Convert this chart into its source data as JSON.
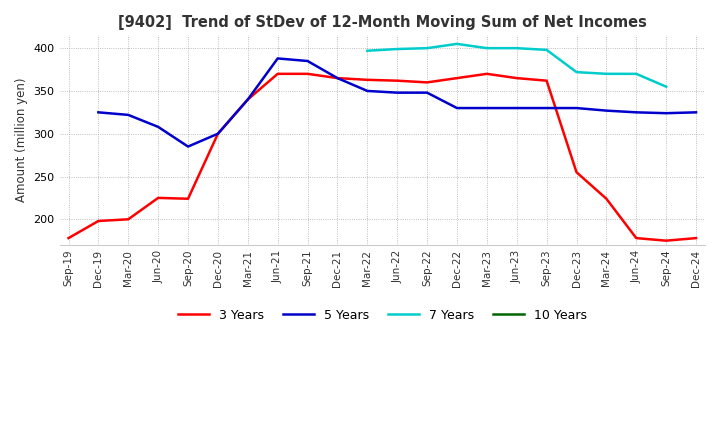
{
  "title": "[9402]  Trend of StDev of 12-Month Moving Sum of Net Incomes",
  "ylabel": "Amount (million yen)",
  "ylim": [
    170,
    415
  ],
  "yticks": [
    200,
    250,
    300,
    350,
    400
  ],
  "background_color": "#ffffff",
  "grid_color": "#aaaaaa",
  "x_labels": [
    "Sep-19",
    "Dec-19",
    "Mar-20",
    "Jun-20",
    "Sep-20",
    "Dec-20",
    "Mar-21",
    "Jun-21",
    "Sep-21",
    "Dec-21",
    "Mar-22",
    "Jun-22",
    "Sep-22",
    "Dec-22",
    "Mar-23",
    "Jun-23",
    "Sep-23",
    "Dec-23",
    "Mar-24",
    "Jun-24",
    "Sep-24",
    "Dec-24"
  ],
  "series": {
    "3 Years": {
      "color": "#ff0000",
      "data": [
        178,
        198,
        200,
        225,
        224,
        300,
        340,
        370,
        370,
        365,
        363,
        362,
        360,
        365,
        370,
        365,
        362,
        255,
        224,
        178,
        175,
        178
      ]
    },
    "5 Years": {
      "color": "#0000cc",
      "data": [
        null,
        325,
        322,
        308,
        285,
        300,
        340,
        388,
        385,
        365,
        350,
        348,
        348,
        330,
        330,
        330,
        330,
        330,
        327,
        325,
        324,
        325
      ]
    },
    "7 Years": {
      "color": "#00cccc",
      "data": [
        null,
        null,
        null,
        null,
        null,
        null,
        null,
        null,
        null,
        null,
        397,
        399,
        400,
        405,
        400,
        400,
        398,
        372,
        370,
        370,
        355,
        null
      ]
    },
    "10 Years": {
      "color": "#006600",
      "data": [
        null,
        null,
        null,
        null,
        null,
        null,
        null,
        null,
        null,
        null,
        null,
        null,
        null,
        null,
        null,
        null,
        null,
        null,
        null,
        null,
        null,
        null
      ]
    }
  },
  "legend_labels": [
    "3 Years",
    "5 Years",
    "7 Years",
    "10 Years"
  ],
  "legend_colors": [
    "#ff0000",
    "#0000cc",
    "#00cccc",
    "#006600"
  ]
}
